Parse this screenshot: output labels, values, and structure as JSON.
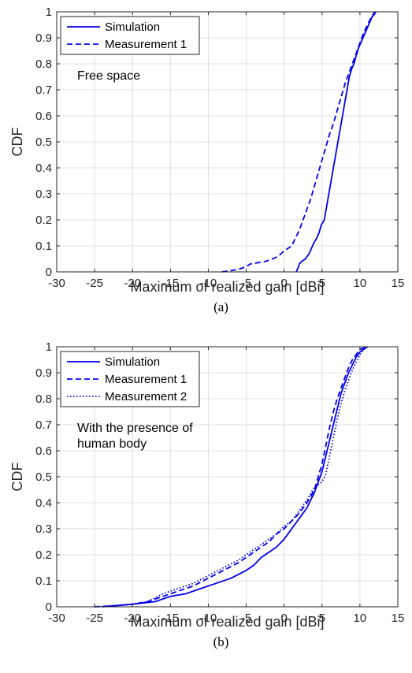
{
  "chart_data": [
    {
      "type": "line",
      "caption": "(a)",
      "xlabel": "Maximum of realized gain [dBi]",
      "ylabel": "CDF",
      "xlim": [
        -30,
        15
      ],
      "ylim": [
        0,
        1
      ],
      "xticks": [
        "-30",
        "-25",
        "-20",
        "-15",
        "-10",
        "-5",
        "0",
        "5",
        "10",
        "15"
      ],
      "yticks": [
        "0",
        "0.1",
        "0.2",
        "0.3",
        "0.4",
        "0.5",
        "0.6",
        "0.7",
        "0.8",
        "0.9",
        "1"
      ],
      "grid": true,
      "legend_position": "top-left",
      "annotation": [
        "Free space"
      ],
      "series": [
        {
          "name": "Simulation",
          "style": "solid",
          "color": "#0000ee",
          "x": [
            1.6,
            1.9,
            2.0,
            2.3,
            2.8,
            3.3,
            3.6,
            3.9,
            4.3,
            4.6,
            4.9,
            5.3,
            5.6,
            5.9,
            6.2,
            6.5,
            6.8,
            7.1,
            7.4,
            7.7,
            8.0,
            8.3,
            8.6,
            8.9,
            9.2,
            9.4,
            9.6,
            9.8,
            10.1,
            10.4,
            10.7,
            11.0,
            11.3,
            11.6,
            11.9,
            12.1
          ],
          "y": [
            0.0,
            0.02,
            0.03,
            0.04,
            0.05,
            0.07,
            0.09,
            0.11,
            0.13,
            0.15,
            0.18,
            0.2,
            0.25,
            0.3,
            0.35,
            0.4,
            0.45,
            0.5,
            0.55,
            0.6,
            0.65,
            0.7,
            0.75,
            0.78,
            0.8,
            0.82,
            0.84,
            0.86,
            0.88,
            0.9,
            0.92,
            0.94,
            0.96,
            0.98,
            0.99,
            1.0
          ]
        },
        {
          "name": "Measurement 1",
          "style": "dashed",
          "color": "#0000ee",
          "x": [
            -8.2,
            -7.0,
            -6.0,
            -5.0,
            -4.5,
            -3.5,
            -2.5,
            -1.5,
            -0.8,
            0.0,
            0.5,
            1.0,
            1.5,
            2.0,
            2.5,
            3.0,
            3.5,
            4.0,
            4.5,
            5.0,
            5.5,
            6.0,
            6.5,
            7.0,
            7.5,
            8.0,
            8.5,
            9.0,
            9.5,
            10.0,
            10.5,
            11.0,
            11.5,
            12.0
          ],
          "y": [
            0.0,
            0.005,
            0.01,
            0.02,
            0.03,
            0.035,
            0.04,
            0.05,
            0.06,
            0.08,
            0.09,
            0.1,
            0.13,
            0.16,
            0.2,
            0.24,
            0.28,
            0.33,
            0.38,
            0.43,
            0.48,
            0.53,
            0.57,
            0.62,
            0.67,
            0.72,
            0.76,
            0.8,
            0.84,
            0.88,
            0.92,
            0.95,
            0.98,
            1.0
          ]
        }
      ]
    },
    {
      "type": "line",
      "caption": "(b)",
      "xlabel": "Maximum of realized gain [dBi]",
      "ylabel": "CDF",
      "xlim": [
        -30,
        15
      ],
      "ylim": [
        0,
        1
      ],
      "xticks": [
        "-30",
        "-25",
        "-20",
        "-15",
        "-10",
        "-5",
        "0",
        "5",
        "10",
        "15"
      ],
      "yticks": [
        "0",
        "0.1",
        "0.2",
        "0.3",
        "0.4",
        "0.5",
        "0.6",
        "0.7",
        "0.8",
        "0.9",
        "1"
      ],
      "grid": true,
      "legend_position": "top-left",
      "annotation": [
        "With the presence of",
        "human body"
      ],
      "series": [
        {
          "name": "Simulation",
          "style": "solid",
          "color": "#0000ee",
          "x": [
            -24.0,
            -20.0,
            -17.0,
            -15.0,
            -13.0,
            -11.0,
            -9.0,
            -7.0,
            -5.0,
            -4.0,
            -3.0,
            -2.0,
            -1.0,
            0.0,
            1.0,
            2.0,
            3.0,
            4.0,
            5.0,
            5.5,
            6.0,
            6.5,
            7.0,
            7.5,
            8.0,
            8.5,
            9.0,
            9.5,
            10.0,
            10.5,
            11.0
          ],
          "y": [
            0.0,
            0.01,
            0.02,
            0.04,
            0.05,
            0.07,
            0.09,
            0.11,
            0.14,
            0.16,
            0.19,
            0.21,
            0.23,
            0.26,
            0.3,
            0.34,
            0.38,
            0.44,
            0.52,
            0.58,
            0.64,
            0.7,
            0.76,
            0.82,
            0.86,
            0.9,
            0.93,
            0.96,
            0.98,
            0.99,
            1.0
          ]
        },
        {
          "name": "Measurement 1",
          "style": "dashed",
          "color": "#0000ee",
          "x": [
            -25.0,
            -22.0,
            -20.0,
            -18.0,
            -16.0,
            -14.0,
            -12.0,
            -10.0,
            -8.0,
            -6.0,
            -4.0,
            -2.0,
            -1.0,
            0.0,
            1.0,
            2.0,
            3.0,
            4.0,
            4.5,
            5.0,
            5.5,
            6.0,
            6.5,
            7.0,
            7.5,
            8.0,
            8.5,
            9.0,
            9.5,
            10.0,
            10.5,
            11.0
          ],
          "y": [
            0.0,
            0.005,
            0.01,
            0.02,
            0.04,
            0.06,
            0.08,
            0.11,
            0.14,
            0.17,
            0.21,
            0.25,
            0.28,
            0.3,
            0.33,
            0.36,
            0.4,
            0.45,
            0.5,
            0.55,
            0.62,
            0.69,
            0.75,
            0.8,
            0.84,
            0.88,
            0.92,
            0.95,
            0.97,
            0.99,
            0.995,
            1.0
          ]
        },
        {
          "name": "Measurement 2",
          "style": "dotted",
          "color": "#0000ee",
          "x": [
            -25.0,
            -22.0,
            -20.0,
            -18.0,
            -16.0,
            -14.0,
            -12.0,
            -10.0,
            -8.0,
            -6.0,
            -4.0,
            -2.0,
            -1.0,
            0.0,
            1.0,
            2.0,
            3.0,
            4.0,
            5.0,
            5.5,
            6.0,
            6.5,
            7.0,
            7.5,
            8.0,
            8.5,
            9.0,
            9.5,
            10.0,
            10.5,
            11.0
          ],
          "y": [
            0.0,
            0.005,
            0.01,
            0.02,
            0.05,
            0.07,
            0.09,
            0.12,
            0.15,
            0.18,
            0.22,
            0.26,
            0.28,
            0.31,
            0.33,
            0.37,
            0.41,
            0.46,
            0.48,
            0.51,
            0.58,
            0.65,
            0.72,
            0.78,
            0.83,
            0.87,
            0.91,
            0.94,
            0.97,
            0.99,
            1.0
          ]
        }
      ]
    }
  ]
}
